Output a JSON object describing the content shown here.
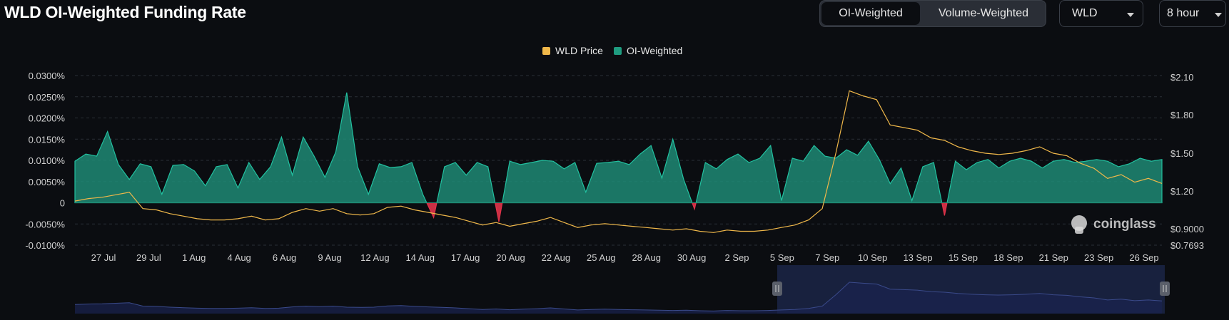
{
  "header": {
    "title": "WLD OI-Weighted Funding Rate",
    "toggle": [
      "OI-Weighted",
      "Volume-Weighted"
    ],
    "active_toggle": "OI-Weighted",
    "symbol_select": "WLD",
    "interval_select": "8 hour"
  },
  "watermark": "coinglass",
  "colors": {
    "positive": "#1f8a74",
    "positive_line": "#22c1a0",
    "negative": "#e0334a",
    "price": "#f0b84a",
    "brush": "#1a2444"
  },
  "chart_data": {
    "type": "area",
    "title": "WLD OI-Weighted Funding Rate",
    "legend": {
      "position": "top-center",
      "entries": [
        {
          "name": "WLD Price",
          "color": "#f0b84a"
        },
        {
          "name": "OI-Weighted",
          "color": "#1f9c80"
        }
      ]
    },
    "x_ticks": [
      "27 Jul",
      "29 Jul",
      "1 Aug",
      "4 Aug",
      "6 Aug",
      "9 Aug",
      "12 Aug",
      "14 Aug",
      "17 Aug",
      "20 Aug",
      "22 Aug",
      "25 Aug",
      "28 Aug",
      "30 Aug",
      "2 Sep",
      "5 Sep",
      "7 Sep",
      "10 Sep",
      "13 Sep",
      "15 Sep",
      "18 Sep",
      "21 Sep",
      "23 Sep",
      "26 Sep"
    ],
    "y_left": {
      "ticks": [
        "0.0300%",
        "0.0250%",
        "0.0200%",
        "0.0150%",
        "0.0100%",
        "0.0050%",
        "0",
        "-0.0050%",
        "-0.0100%"
      ],
      "values": [
        0.03,
        0.025,
        0.02,
        0.015,
        0.01,
        0.005,
        0,
        -0.005,
        -0.01
      ],
      "range": [
        -0.01,
        0.03
      ]
    },
    "y_right": {
      "ticks": [
        "$2.10",
        "$1.80",
        "$1.50",
        "$1.20",
        "$0.9000",
        "$0.7693"
      ],
      "values": [
        2.1,
        1.8,
        1.5,
        1.2,
        0.9,
        0.7693
      ],
      "range": [
        0.7693,
        2.1
      ]
    },
    "grid": true,
    "series": [
      {
        "name": "OI-Weighted",
        "axis": "left",
        "x_index": [
          0,
          2,
          4,
          6,
          8,
          10,
          12,
          14,
          16,
          18,
          20,
          22,
          24,
          26,
          28,
          30,
          32,
          34,
          36,
          38,
          40,
          42,
          44,
          46,
          48,
          50,
          52,
          54,
          56,
          58,
          60,
          62,
          64,
          66,
          68,
          70,
          72,
          74,
          76,
          78,
          80,
          82,
          84,
          86,
          88,
          90,
          92,
          94,
          96,
          98,
          100,
          102,
          104,
          106,
          108,
          110,
          112,
          114,
          116,
          118,
          120,
          122,
          124,
          126,
          128,
          130,
          132,
          134,
          136,
          138,
          140,
          142,
          144,
          146,
          148,
          150,
          152,
          154,
          156,
          158,
          160,
          162,
          164,
          166,
          168,
          170,
          172,
          174,
          176,
          178,
          180,
          182,
          184,
          186,
          188,
          190,
          192,
          194,
          196,
          198,
          200
        ],
        "values": [
          0.0098,
          0.0115,
          0.011,
          0.0168,
          0.009,
          0.0055,
          0.0092,
          0.0085,
          0.002,
          0.0088,
          0.009,
          0.0075,
          0.004,
          0.0085,
          0.009,
          0.0035,
          0.0095,
          0.0055,
          0.0085,
          0.0155,
          0.0065,
          0.0155,
          0.011,
          0.006,
          0.012,
          0.026,
          0.0085,
          0.002,
          0.0092,
          0.0083,
          0.0085,
          0.0095,
          0.002,
          -0.0035,
          0.0085,
          0.0095,
          0.0065,
          0.0095,
          0.0085,
          -0.0045,
          0.0098,
          0.009,
          0.0095,
          0.01,
          0.0098,
          0.008,
          0.0095,
          0.0025,
          0.0093,
          0.0095,
          0.0098,
          0.009,
          0.0115,
          0.0135,
          0.0058,
          0.015,
          0.0055,
          -0.0015,
          0.0095,
          0.008,
          0.0102,
          0.0115,
          0.0095,
          0.0105,
          0.0135,
          0.0005,
          0.0105,
          0.0098,
          0.0135,
          0.011,
          0.0105,
          0.0125,
          0.0112,
          0.0145,
          0.0102,
          0.0045,
          0.0082,
          0.0005,
          0.0085,
          0.0095,
          -0.003,
          0.0098,
          0.0078,
          0.0095,
          0.0102,
          0.0082,
          0.0098,
          0.0105,
          0.0098,
          0.0082,
          0.0098,
          0.0102,
          0.0095,
          0.0098,
          0.0102,
          0.0098,
          0.0085,
          0.0092,
          0.0105,
          0.0098,
          0.0102
        ]
      },
      {
        "name": "WLD Price",
        "axis": "right",
        "values": [
          1.12,
          1.14,
          1.15,
          1.17,
          1.19,
          1.06,
          1.05,
          1.02,
          1.0,
          0.98,
          0.97,
          0.97,
          0.98,
          1.0,
          0.97,
          0.98,
          1.03,
          1.06,
          1.04,
          1.06,
          1.02,
          1.01,
          1.02,
          1.07,
          1.08,
          1.05,
          1.03,
          1.01,
          0.99,
          0.96,
          0.93,
          0.95,
          0.92,
          0.94,
          0.96,
          0.99,
          0.95,
          0.91,
          0.93,
          0.94,
          0.93,
          0.92,
          0.91,
          0.9,
          0.89,
          0.9,
          0.88,
          0.87,
          0.89,
          0.88,
          0.88,
          0.89,
          0.91,
          0.93,
          0.97,
          1.06,
          1.5,
          1.99,
          1.95,
          1.92,
          1.72,
          1.7,
          1.68,
          1.62,
          1.6,
          1.55,
          1.52,
          1.5,
          1.49,
          1.5,
          1.52,
          1.55,
          1.5,
          1.48,
          1.42,
          1.38,
          1.3,
          1.33,
          1.27,
          1.3,
          1.26
        ]
      }
    ]
  }
}
